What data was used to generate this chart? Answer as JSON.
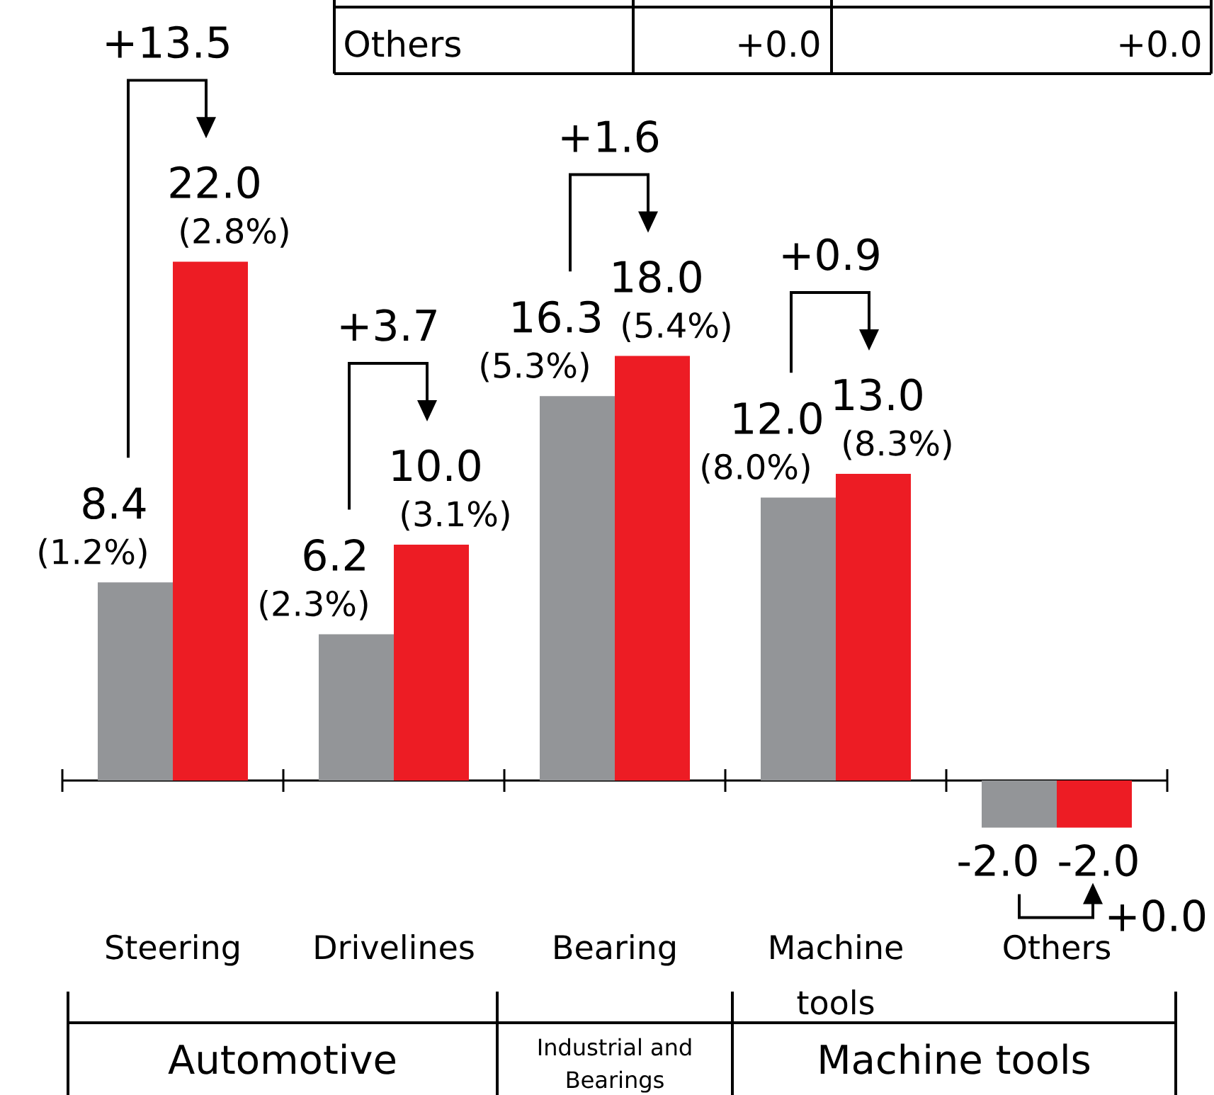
{
  "chart_data": {
    "type": "bar",
    "categories": [
      "Steering",
      "Drivelines",
      "Bearing",
      "Machine tools",
      "Others"
    ],
    "series": [
      {
        "color": "#939598",
        "values": [
          8.4,
          6.2,
          16.3,
          12.0,
          -2.0
        ],
        "value_labels": [
          "8.4",
          "6.2",
          "16.3",
          "12.0",
          "-2.0"
        ]
      },
      {
        "color": "#ed1c24",
        "values": [
          22.0,
          10.0,
          18.0,
          13.0,
          -2.0
        ],
        "value_labels": [
          "22.0",
          "10.0",
          "18.0",
          "13.0",
          "-2.0"
        ]
      }
    ],
    "annotations": [
      "+13.5",
      "+3.7",
      "+1.6",
      "+0.9",
      "+0.0",
      "(1.2%)",
      "(2.8%)",
      "(2.3%)",
      "(3.1%)",
      "(5.3%)",
      "(5.4%)",
      "(8.0%)",
      "(8.3%)",
      "Others",
      "+0.0",
      "+0.0",
      "Automotive",
      "Industrial and Bearings",
      "Machine tools"
    ],
    "tick_labels": "x"
  }
}
